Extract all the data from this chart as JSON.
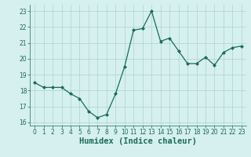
{
  "x": [
    0,
    1,
    2,
    3,
    4,
    5,
    6,
    7,
    8,
    9,
    10,
    11,
    12,
    13,
    14,
    15,
    16,
    17,
    18,
    19,
    20,
    21,
    22,
    23
  ],
  "y": [
    18.5,
    18.2,
    18.2,
    18.2,
    17.8,
    17.5,
    16.7,
    16.3,
    16.5,
    17.8,
    19.5,
    21.8,
    21.9,
    23.0,
    21.1,
    21.3,
    20.5,
    19.7,
    19.7,
    20.1,
    19.6,
    20.4,
    20.7,
    20.8
  ],
  "line_color": "#1a6b5a",
  "marker": "D",
  "marker_size": 2.0,
  "bg_color": "#d6f0ef",
  "grid_color": "#b0d8d5",
  "xlabel": "Humidex (Indice chaleur)",
  "ylim": [
    15.8,
    23.4
  ],
  "yticks": [
    16,
    17,
    18,
    19,
    20,
    21,
    22,
    23
  ],
  "xticks": [
    0,
    1,
    2,
    3,
    4,
    5,
    6,
    7,
    8,
    9,
    10,
    11,
    12,
    13,
    14,
    15,
    16,
    17,
    18,
    19,
    20,
    21,
    22,
    23
  ],
  "tick_fontsize": 5.5,
  "xlabel_fontsize": 7.5,
  "line_width": 0.9
}
